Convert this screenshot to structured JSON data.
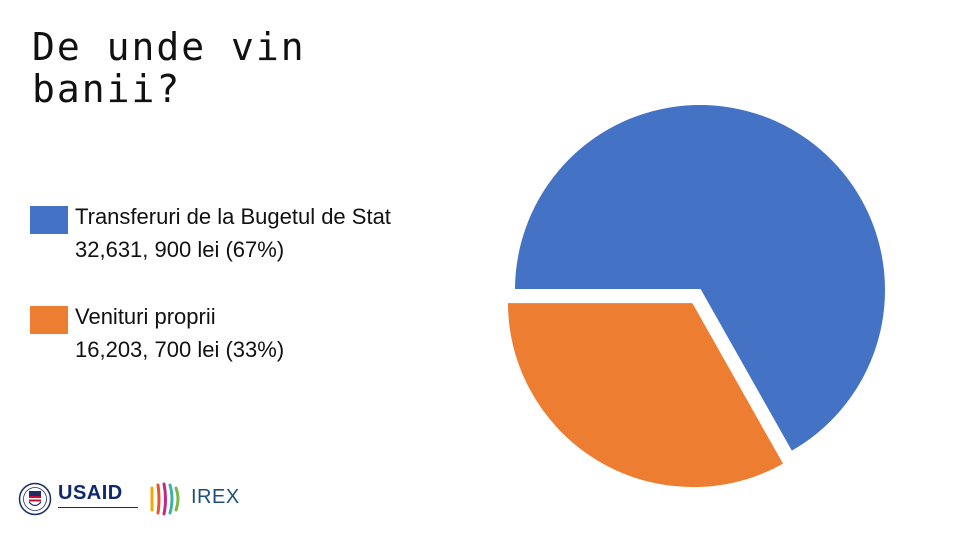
{
  "chart_data": {
    "type": "pie",
    "title_lines": [
      "De unde vin",
      "banii?"
    ],
    "categories": [
      "Transferuri de la Bugetul de Stat",
      "Venituri proprii"
    ],
    "values": [
      32631900,
      16203700
    ],
    "percents": [
      67,
      33
    ],
    "value_labels": [
      "32,631, 900 lei (67%)",
      "16,203, 700 lei (33%)"
    ],
    "colors": [
      "#4472c4",
      "#ed7d31"
    ],
    "exploded_slice": 1,
    "legend_placement": "left"
  },
  "logos": {
    "usaid_word": "USAID",
    "irex_word": "IREX"
  }
}
